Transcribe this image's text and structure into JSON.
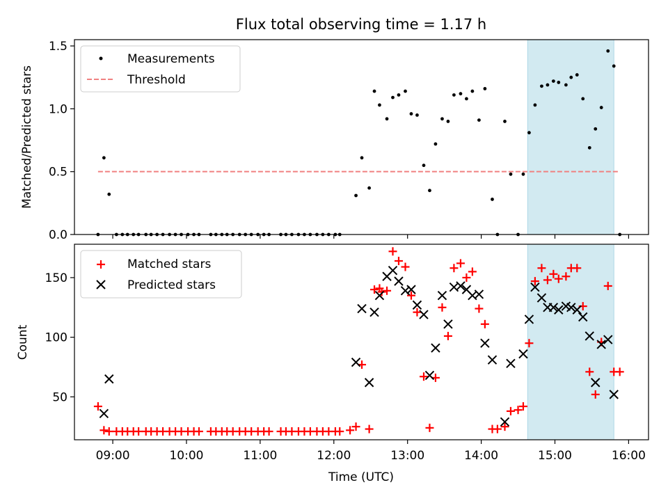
{
  "chart_data": {
    "title": "Flux total observing time = 1.17 h",
    "xlabel": "Time (UTC)",
    "xticks": [
      "09:00",
      "10:00",
      "11:00",
      "12:00",
      "13:00",
      "14:00",
      "15:00",
      "16:00"
    ],
    "xlim_hours": [
      8.48,
      16.27
    ],
    "shaded_span_hours": [
      14.63,
      15.8
    ],
    "colors": {
      "measurements": "#000000",
      "threshold": "#f08080",
      "matched": "#ff0000",
      "predicted": "#000000",
      "span": "#add8e6"
    },
    "top": {
      "type": "scatter",
      "ylabel": "Matched/Predicted stars",
      "ylim": [
        0,
        1.55
      ],
      "yticks": [
        "0.0",
        "0.5",
        "1.0",
        "1.5"
      ],
      "legend": {
        "placement": "upper-left",
        "entries": [
          "Measurements",
          "Threshold"
        ]
      },
      "threshold": {
        "value": 0.5,
        "x_range_hours": [
          8.8,
          15.88
        ]
      },
      "x_hours": [
        8.8,
        8.88,
        8.95,
        9.05,
        9.13,
        9.2,
        9.28,
        9.35,
        9.45,
        9.52,
        9.6,
        9.68,
        9.77,
        9.85,
        9.93,
        10.02,
        10.1,
        10.17,
        10.33,
        10.4,
        10.48,
        10.55,
        10.63,
        10.72,
        10.8,
        10.88,
        10.97,
        11.05,
        11.12,
        11.28,
        11.35,
        11.43,
        11.52,
        11.6,
        11.68,
        11.77,
        11.85,
        11.93,
        12.02,
        12.08,
        12.3,
        12.38,
        12.48,
        12.55,
        12.62,
        12.72,
        12.8,
        12.88,
        12.97,
        13.05,
        13.13,
        13.22,
        13.3,
        13.38,
        13.47,
        13.55,
        13.63,
        13.72,
        13.8,
        13.88,
        13.97,
        14.05,
        14.15,
        14.22,
        14.32,
        14.4,
        14.5,
        14.57,
        14.65,
        14.73,
        14.82,
        14.9,
        14.98,
        15.05,
        15.15,
        15.22,
        15.3,
        15.38,
        15.47,
        15.55,
        15.63,
        15.72,
        15.8,
        15.88
      ],
      "y_values": [
        0,
        0.61,
        0.32,
        0,
        0,
        0,
        0,
        0,
        0,
        0,
        0,
        0,
        0,
        0,
        0,
        0,
        0,
        0,
        0,
        0,
        0,
        0,
        0,
        0,
        0,
        0,
        0,
        0,
        0,
        0,
        0,
        0,
        0,
        0,
        0,
        0,
        0,
        0,
        0,
        0,
        0.31,
        0.61,
        0.37,
        1.14,
        1.03,
        0.92,
        1.09,
        1.11,
        1.14,
        0.96,
        0.95,
        0.55,
        0.35,
        0.72,
        0.92,
        0.9,
        1.11,
        1.12,
        1.08,
        1.14,
        0.91,
        1.16,
        0.28,
        0,
        0.9,
        0.48,
        0,
        0.48,
        0.81,
        1.03,
        1.18,
        1.19,
        1.22,
        1.21,
        1.19,
        1.25,
        1.27,
        1.08,
        0.69,
        0.84,
        1.01,
        1.46,
        1.34,
        0
      ]
    },
    "bottom": {
      "type": "scatter",
      "ylabel": "Count",
      "ylim": [
        14,
        178
      ],
      "yticks": [
        "50",
        "100",
        "150"
      ],
      "legend": {
        "placement": "upper-left",
        "entries": [
          "Matched stars",
          "Predicted stars"
        ]
      },
      "matched": {
        "x_hours": [
          8.8,
          8.88,
          8.95,
          9.05,
          9.13,
          9.2,
          9.28,
          9.35,
          9.45,
          9.52,
          9.6,
          9.68,
          9.77,
          9.85,
          9.93,
          10.02,
          10.1,
          10.17,
          10.33,
          10.4,
          10.48,
          10.55,
          10.63,
          10.72,
          10.8,
          10.88,
          10.97,
          11.05,
          11.12,
          11.28,
          11.35,
          11.43,
          11.52,
          11.6,
          11.68,
          11.77,
          11.85,
          11.93,
          12.02,
          12.08,
          12.22,
          12.3,
          12.38,
          12.48,
          12.55,
          12.62,
          12.65,
          12.72,
          12.8,
          12.88,
          12.97,
          13.05,
          13.13,
          13.22,
          13.3,
          13.38,
          13.47,
          13.55,
          13.63,
          13.72,
          13.8,
          13.88,
          13.97,
          14.05,
          14.15,
          14.22,
          14.32,
          14.4,
          14.5,
          14.57,
          14.65,
          14.73,
          14.82,
          14.9,
          14.98,
          15.05,
          15.15,
          15.22,
          15.3,
          15.38,
          15.47,
          15.55,
          15.63,
          15.72,
          15.8,
          15.88
        ],
        "values": [
          42,
          22,
          21,
          21,
          21,
          21,
          21,
          21,
          21,
          21,
          21,
          21,
          21,
          21,
          21,
          21,
          21,
          21,
          21,
          21,
          21,
          21,
          21,
          21,
          21,
          21,
          21,
          21,
          21,
          21,
          21,
          21,
          21,
          21,
          21,
          21,
          21,
          21,
          21,
          21,
          22,
          25,
          77,
          23,
          140,
          141,
          138,
          139,
          172,
          164,
          159,
          135,
          121,
          67,
          24,
          66,
          125,
          101,
          158,
          162,
          150,
          155,
          124,
          111,
          23,
          23,
          25,
          38,
          39,
          42,
          95,
          147,
          158,
          148,
          153,
          149,
          151,
          158,
          158,
          126,
          71,
          52,
          96,
          143,
          71,
          71
        ]
      },
      "predicted": {
        "x_hours": [
          8.88,
          8.95,
          12.3,
          12.38,
          12.48,
          12.55,
          12.62,
          12.72,
          12.8,
          12.88,
          12.97,
          13.05,
          13.13,
          13.22,
          13.3,
          13.38,
          13.47,
          13.55,
          13.63,
          13.72,
          13.8,
          13.88,
          13.97,
          14.05,
          14.15,
          14.32,
          14.4,
          14.57,
          14.65,
          14.73,
          14.82,
          14.9,
          14.98,
          15.05,
          15.15,
          15.22,
          15.3,
          15.38,
          15.47,
          15.55,
          15.63,
          15.72,
          15.8
        ],
        "values": [
          36,
          65,
          79,
          124,
          62,
          121,
          135,
          151,
          156,
          147,
          139,
          140,
          127,
          119,
          68,
          91,
          135,
          111,
          142,
          143,
          140,
          135,
          136,
          95,
          81,
          29,
          78,
          86,
          115,
          142,
          133,
          125,
          125,
          123,
          126,
          125,
          123,
          117,
          101,
          62,
          94,
          98,
          52
        ]
      }
    }
  }
}
